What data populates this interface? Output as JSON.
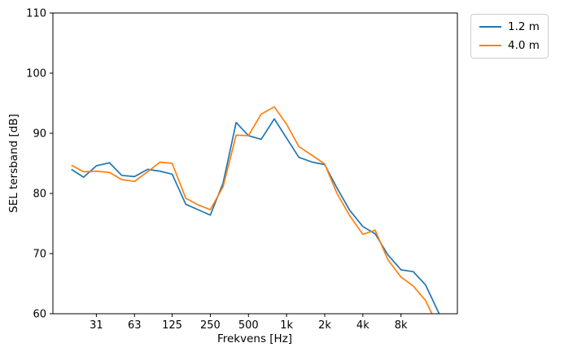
{
  "figure": {
    "background": "#ffffff",
    "axis_color": "#000000"
  },
  "chart_data": {
    "type": "line",
    "title": "",
    "xlabel": "Frekvens [Hz]",
    "ylabel": "SEL tersband [dB]",
    "x_scale": "log",
    "grid": false,
    "legend_position": "upper-right-outside",
    "xlim": [
      14.3,
      22300
    ],
    "ylim": [
      60,
      110
    ],
    "x_ticks": {
      "values": [
        31.5,
        63,
        125,
        250,
        500,
        1000,
        2000,
        4000,
        8000
      ],
      "labels": [
        "31",
        "63",
        "125",
        "250",
        "500",
        "1k",
        "2k",
        "4k",
        "8k"
      ]
    },
    "y_ticks": {
      "values": [
        60,
        70,
        80,
        90,
        100,
        110
      ],
      "labels": [
        "60",
        "70",
        "80",
        "90",
        "100",
        "110"
      ]
    },
    "x": [
      20,
      25,
      31.5,
      40,
      50,
      63,
      80,
      100,
      125,
      160,
      200,
      250,
      315,
      400,
      500,
      630,
      800,
      1000,
      1250,
      1600,
      2000,
      2500,
      3150,
      4000,
      5000,
      6300,
      8000,
      10000,
      12500,
      16000
    ],
    "series": [
      {
        "name": "1.2 m",
        "color": "#1f77b4",
        "values": [
          84.0,
          82.7,
          84.6,
          85.1,
          83.0,
          82.8,
          84.0,
          83.7,
          83.2,
          78.2,
          77.3,
          76.4,
          81.7,
          91.8,
          89.6,
          89.0,
          92.4,
          89.2,
          86.0,
          85.2,
          84.8,
          80.9,
          77.2,
          74.5,
          73.3,
          69.8,
          67.3,
          67.0,
          64.8,
          60.0
        ]
      },
      {
        "name": "4.0 m",
        "color": "#ff7f0e",
        "values": [
          84.7,
          83.6,
          83.7,
          83.5,
          82.3,
          82.0,
          83.6,
          85.2,
          85.0,
          79.2,
          78.1,
          77.3,
          81.1,
          89.7,
          89.6,
          93.2,
          94.4,
          91.5,
          87.8,
          86.3,
          84.9,
          80.0,
          76.3,
          73.2,
          73.9,
          69.0,
          66.1,
          64.6,
          62.2,
          57.5
        ]
      }
    ]
  }
}
